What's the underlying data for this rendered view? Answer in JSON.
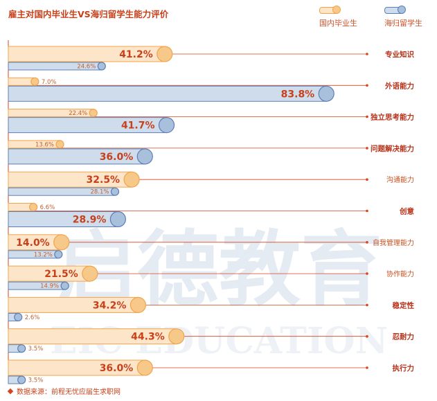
{
  "title": "雇主对国内毕业生VS海归留学生能力评价",
  "legend": [
    {
      "label": "国内毕业生",
      "color": "#fde5c9",
      "edge": "#f2a44a"
    },
    {
      "label": "海归留学生",
      "color": "#cfdcec",
      "edge": "#5b7fb5"
    }
  ],
  "source": "数据来源：前程无忧应届生求职网",
  "watermark": {
    "cn": "启德教育",
    "en": "EIC EDUCATION"
  },
  "chart_data": {
    "type": "bar",
    "orientation": "horizontal",
    "xlim": [
      0,
      100
    ],
    "categories": [
      "专业知识",
      "外语能力",
      "独立思考能力",
      "问题解决能力",
      "沟通能力",
      "创意",
      "自我管理能力",
      "协作能力",
      "稳定性",
      "忍耐力",
      "执行力"
    ],
    "category_emphasis": [
      true,
      true,
      true,
      true,
      false,
      true,
      false,
      false,
      true,
      true,
      true
    ],
    "series": [
      {
        "name": "国内毕业生",
        "values": [
          41.2,
          7.0,
          22.4,
          13.6,
          32.5,
          6.6,
          14.0,
          21.5,
          34.2,
          44.3,
          36.0
        ]
      },
      {
        "name": "海归留学生",
        "values": [
          24.6,
          83.8,
          41.7,
          36.0,
          28.1,
          28.9,
          13.2,
          14.9,
          2.6,
          3.5,
          3.5
        ]
      }
    ],
    "value_labels": [
      [
        "41.2%",
        "7.0%",
        "22.4%",
        "13.6%",
        "32.5%",
        "6.6%",
        "14.0%",
        "21.5%",
        "34.2%",
        "44.3%",
        "36.0%"
      ],
      [
        "24.6%",
        "83.8%",
        "41.7%",
        "36.0%",
        "28.1%",
        "28.9%",
        "13.2%",
        "14.9%",
        "2.6%",
        "3.5%",
        "3.5%"
      ]
    ],
    "colors": {
      "domestic_fill": "#fde5c9",
      "domestic_edge": "#f2a44a",
      "domestic_dot": "#f6c88a",
      "returnee_fill": "#cfdcec",
      "returnee_edge": "#5b7fb5",
      "returnee_dot": "#a9c0dd",
      "accent": "#d9431c"
    }
  }
}
